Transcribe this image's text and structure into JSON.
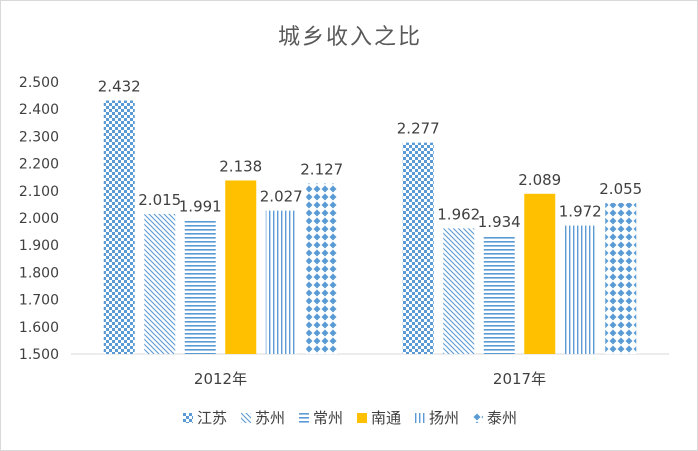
{
  "chart_data": {
    "type": "bar",
    "title": "城乡收入之比",
    "categories": [
      "2012年",
      "2017年"
    ],
    "series": [
      {
        "name": "江苏",
        "values": [
          2.432,
          2.277
        ],
        "color": "#5b9bd5",
        "pattern": "checker"
      },
      {
        "name": "苏州",
        "values": [
          2.015,
          1.962
        ],
        "color": "#5b9bd5",
        "pattern": "diagonal"
      },
      {
        "name": "常州",
        "values": [
          1.991,
          1.934
        ],
        "color": "#5b9bd5",
        "pattern": "horizontal"
      },
      {
        "name": "南通",
        "values": [
          2.138,
          2.089
        ],
        "color": "#ffc000",
        "pattern": "solid"
      },
      {
        "name": "扬州",
        "values": [
          2.027,
          1.972
        ],
        "color": "#5b9bd5",
        "pattern": "vertical"
      },
      {
        "name": "泰州",
        "values": [
          2.127,
          2.055
        ],
        "color": "#5b9bd5",
        "pattern": "diamond"
      }
    ],
    "ylim": [
      1.5,
      2.5
    ],
    "yticks": [
      "1.500",
      "1.600",
      "1.700",
      "1.800",
      "1.900",
      "2.000",
      "2.100",
      "2.200",
      "2.300",
      "2.400",
      "2.500"
    ],
    "data_labels": true,
    "grid": false,
    "legend_position": "bottom"
  }
}
